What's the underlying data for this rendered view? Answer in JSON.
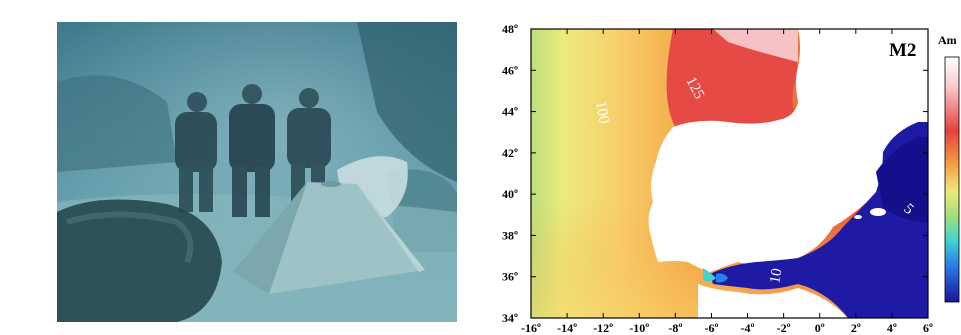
{
  "photo": {
    "subject": "underwater-divers-pyramid"
  },
  "map": {
    "panel_label": "M2",
    "colorbar_title": "Am",
    "lat_ticks": [
      "48º",
      "46º",
      "44º",
      "42º",
      "40º",
      "38º",
      "36º",
      "34º"
    ],
    "lon_ticks": [
      "-16º",
      "-14º",
      "-12º",
      "-10º",
      "-8º",
      "-6º",
      "-4º",
      "-2º",
      "0º",
      "2º",
      "4º",
      "6º"
    ],
    "contour_labels": [
      "125",
      "100",
      "10",
      "5"
    ],
    "colors": {
      "atlantic_high": "#e8413c",
      "atlantic_mid": "#f3a247",
      "atlantic_low": "#f6e07a",
      "coast_shallow": "#b7e07a",
      "med": "#1f1aa3",
      "med_dark": "#12108a",
      "land": "#ffffff"
    }
  }
}
